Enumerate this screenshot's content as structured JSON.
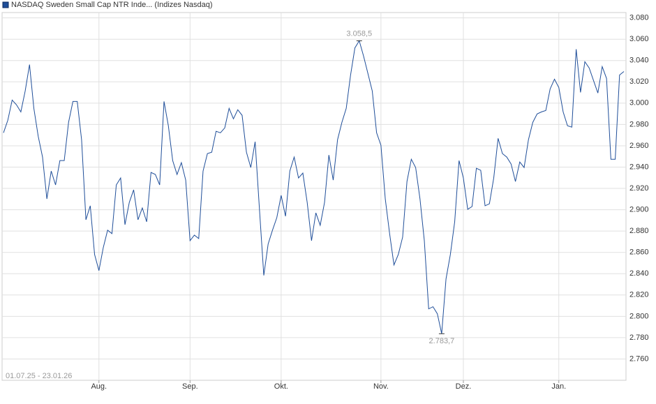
{
  "chart_data": {
    "type": "line",
    "title": "NASDAQ Sweden Small Cap NTR Inde... (Indizes Nasdaq)",
    "subtitle": "01.07.25 - 23.01.26",
    "categories": [
      null,
      null,
      null,
      null,
      null,
      null,
      null,
      null,
      null,
      null,
      null,
      null,
      null,
      null,
      null,
      null,
      null,
      null,
      null,
      null,
      null,
      null,
      "Aug.",
      null,
      null,
      null,
      null,
      null,
      null,
      null,
      null,
      null,
      null,
      null,
      null,
      null,
      null,
      null,
      null,
      null,
      null,
      null,
      null,
      "Sep.",
      null,
      null,
      null,
      null,
      null,
      null,
      null,
      null,
      null,
      null,
      null,
      null,
      null,
      null,
      null,
      null,
      null,
      null,
      null,
      null,
      "Okt.",
      null,
      null,
      null,
      null,
      null,
      null,
      null,
      null,
      null,
      null,
      null,
      null,
      null,
      null,
      null,
      null,
      null,
      null,
      null,
      null,
      null,
      null,
      "Nov.",
      null,
      null,
      null,
      null,
      null,
      null,
      null,
      null,
      null,
      null,
      null,
      null,
      null,
      null,
      null,
      null,
      null,
      null,
      "Dez.",
      null,
      null,
      null,
      null,
      null,
      null,
      null,
      null,
      null,
      null,
      null,
      null,
      null,
      null,
      null,
      null,
      null,
      null,
      null,
      null,
      null,
      "Jan.",
      null,
      null,
      null,
      null,
      null,
      null,
      null,
      null,
      null,
      null,
      null,
      null,
      null,
      null,
      null
    ],
    "series": [
      {
        "name": "NASDAQ Sweden Small Cap NTR Inde... (Indizes Nasdaq)",
        "color": "#1f4e99",
        "values": [
          2972.2,
          2984.0,
          3002.9,
          2998.4,
          2991.8,
          3011.4,
          3036.2,
          2995.1,
          2969.0,
          2949.4,
          2910.2,
          2936.3,
          2923.3,
          2946.1,
          2946.1,
          2982.0,
          3001.6,
          3001.6,
          2965.7,
          2890.6,
          2903.7,
          2858.0,
          2842.9,
          2864.5,
          2880.8,
          2877.6,
          2923.3,
          2929.8,
          2886.0,
          2906.9,
          2918.7,
          2890.6,
          2901.7,
          2888.7,
          2935.0,
          2933.1,
          2923.3,
          3001.6,
          2978.8,
          2946.1,
          2933.1,
          2944.2,
          2927.8,
          2871.0,
          2876.2,
          2873.0,
          2936.3,
          2952.7,
          2954.0,
          2973.6,
          2972.2,
          2976.8,
          2995.1,
          2985.3,
          2993.8,
          2988.6,
          2954.0,
          2939.6,
          2963.8,
          2900.4,
          2838.4,
          2867.8,
          2880.8,
          2892.6,
          2913.5,
          2893.9,
          2936.3,
          2949.4,
          2929.8,
          2934.4,
          2906.9,
          2871.0,
          2897.1,
          2885.4,
          2906.9,
          2951.3,
          2927.8,
          2965.7,
          2982.0,
          2995.1,
          3026.4,
          3051.9,
          3058.5,
          3044.1,
          3027.8,
          3011.4,
          2972.2,
          2960.5,
          2910.2,
          2877.6,
          2848.2,
          2858.0,
          2874.3,
          2926.5,
          2947.4,
          2939.6,
          2910.2,
          2871.0,
          2807.0,
          2809.0,
          2802.4,
          2783.7,
          2835.1,
          2858.0,
          2888.7,
          2946.1,
          2929.8,
          2900.4,
          2903.0,
          2938.9,
          2937.0,
          2903.7,
          2905.6,
          2929.8,
          2967.0,
          2952.7,
          2949.4,
          2942.9,
          2926.5,
          2944.8,
          2939.6,
          2965.7,
          2982.0,
          2989.9,
          2991.8,
          2993.1,
          3013.4,
          3022.5,
          3014.7,
          2991.8,
          2978.8,
          2977.5,
          3050.6,
          3010.1,
          3038.9,
          3033.0,
          3021.2,
          3009.5,
          3034.3,
          3023.2,
          2947.4,
          2947.4,
          3026.4,
          3029.7
        ],
        "value_labels": [
          null,
          null,
          null,
          null,
          null,
          null,
          null,
          null,
          null,
          null,
          null,
          null,
          null,
          null,
          null,
          null,
          null,
          null,
          null,
          null,
          null,
          null,
          null,
          null,
          null,
          null,
          null,
          null,
          null,
          null,
          null,
          null,
          null,
          null,
          null,
          null,
          null,
          null,
          null,
          null,
          null,
          null,
          null,
          null,
          null,
          null,
          null,
          null,
          null,
          null,
          null,
          null,
          null,
          null,
          null,
          null,
          null,
          null,
          null,
          null,
          null,
          null,
          null,
          null,
          null,
          null,
          null,
          null,
          null,
          null,
          null,
          null,
          null,
          null,
          null,
          null,
          null,
          null,
          null,
          null,
          null,
          null,
          "3.058,5",
          null,
          null,
          null,
          null,
          null,
          null,
          null,
          null,
          null,
          null,
          null,
          null,
          null,
          null,
          null,
          null,
          null,
          null,
          "2.783,7",
          null,
          null,
          null,
          null,
          null,
          null,
          null,
          null,
          null,
          null,
          null,
          null,
          null,
          null,
          null,
          null,
          null,
          null,
          null,
          null,
          null,
          null,
          null,
          null,
          null,
          null,
          null,
          null,
          null,
          null,
          null,
          null,
          null,
          null,
          null,
          null,
          null,
          null,
          null,
          null,
          null,
          null
        ]
      }
    ],
    "ylim": [
      2740,
      3085
    ],
    "yticks": [
      {
        "value": 2760,
        "label": "2.760"
      },
      {
        "value": 2780,
        "label": "2.780"
      },
      {
        "value": 2800,
        "label": "2.800"
      },
      {
        "value": 2820,
        "label": "2.820"
      },
      {
        "value": 2840,
        "label": "2.840"
      },
      {
        "value": 2860,
        "label": "2.860"
      },
      {
        "value": 2880,
        "label": "2.880"
      },
      {
        "value": 2900,
        "label": "2.900"
      },
      {
        "value": 2920,
        "label": "2.920"
      },
      {
        "value": 2940,
        "label": "2.940"
      },
      {
        "value": 2960,
        "label": "2.960"
      },
      {
        "value": 2980,
        "label": "2.980"
      },
      {
        "value": 3000,
        "label": "3.000"
      },
      {
        "value": 3020,
        "label": "3.020"
      },
      {
        "value": 3040,
        "label": "3.040"
      },
      {
        "value": 3060,
        "label": "3.060"
      },
      {
        "value": 3080,
        "label": "3.080"
      }
    ],
    "grid": true
  }
}
